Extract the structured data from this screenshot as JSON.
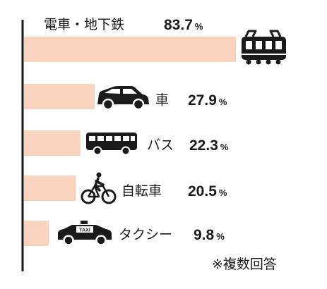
{
  "chart_data": {
    "type": "bar",
    "orientation": "horizontal",
    "unit": "%",
    "bar_color": "#fad3bf",
    "axis_color": "#1a1a1a",
    "xlim": [
      0,
      100
    ],
    "categories": [
      "電車・地下鉄",
      "車",
      "バス",
      "自転車",
      "タクシー"
    ],
    "values": [
      83.7,
      27.9,
      22.3,
      20.5,
      9.8
    ],
    "labels": [
      "83.7",
      "27.9",
      "22.3",
      "20.5",
      "9.8"
    ],
    "icons": [
      "train-icon",
      "car-icon",
      "bus-icon",
      "bicycle-icon",
      "taxi-icon"
    ],
    "taxi_sign": "TAXI",
    "note": "※複数回答"
  }
}
